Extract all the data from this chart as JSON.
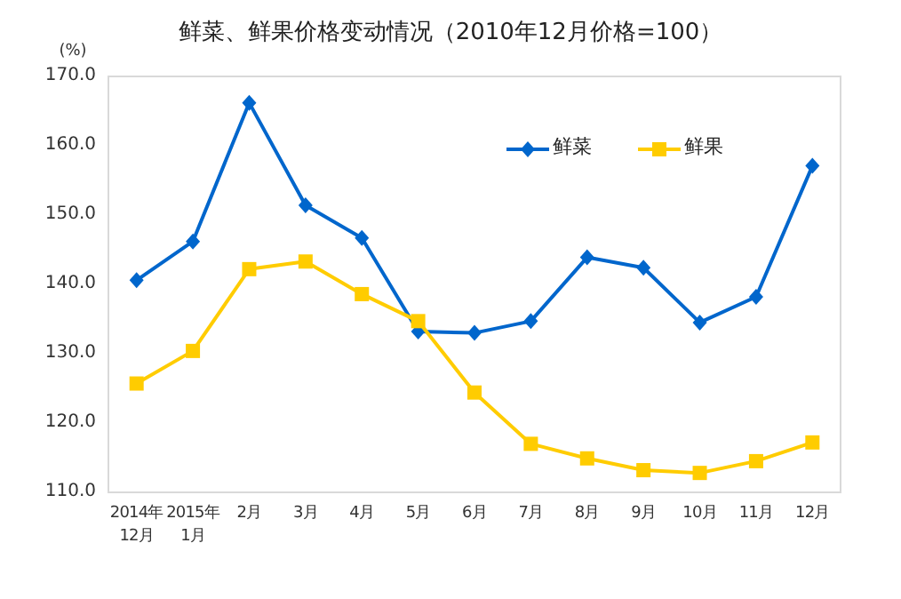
{
  "chart_data": {
    "type": "line",
    "title": "鲜菜、鲜果价格变动情况（2010年12月价格=100）",
    "ylabel": "(%)",
    "categories": [
      "2014年12月",
      "2015年1月",
      "2月",
      "3月",
      "4月",
      "5月",
      "6月",
      "7月",
      "8月",
      "9月",
      "10月",
      "11月",
      "12月"
    ],
    "series": [
      {
        "name": "鲜菜",
        "color": "#0066cc",
        "marker": "diamond",
        "values": [
          140.6,
          146.2,
          166.2,
          151.4,
          146.7,
          133.2,
          133.0,
          134.7,
          143.9,
          142.4,
          134.5,
          138.2,
          157.1
        ]
      },
      {
        "name": "鲜果",
        "color": "#ffcc00",
        "marker": "square",
        "values": [
          125.7,
          130.4,
          142.2,
          143.3,
          138.6,
          134.7,
          124.4,
          117.0,
          114.9,
          113.2,
          112.8,
          114.5,
          117.2
        ]
      }
    ],
    "ylim": [
      110,
      170
    ],
    "yticks": [
      {
        "value": 110,
        "label": "110.0"
      },
      {
        "value": 120,
        "label": "120.0"
      },
      {
        "value": 130,
        "label": "130.0"
      },
      {
        "value": 140,
        "label": "140.0"
      },
      {
        "value": 150,
        "label": "150.0"
      },
      {
        "value": 160,
        "label": "160.0"
      },
      {
        "value": 170,
        "label": "170.0"
      }
    ],
    "legend": "top right",
    "grid": false
  }
}
